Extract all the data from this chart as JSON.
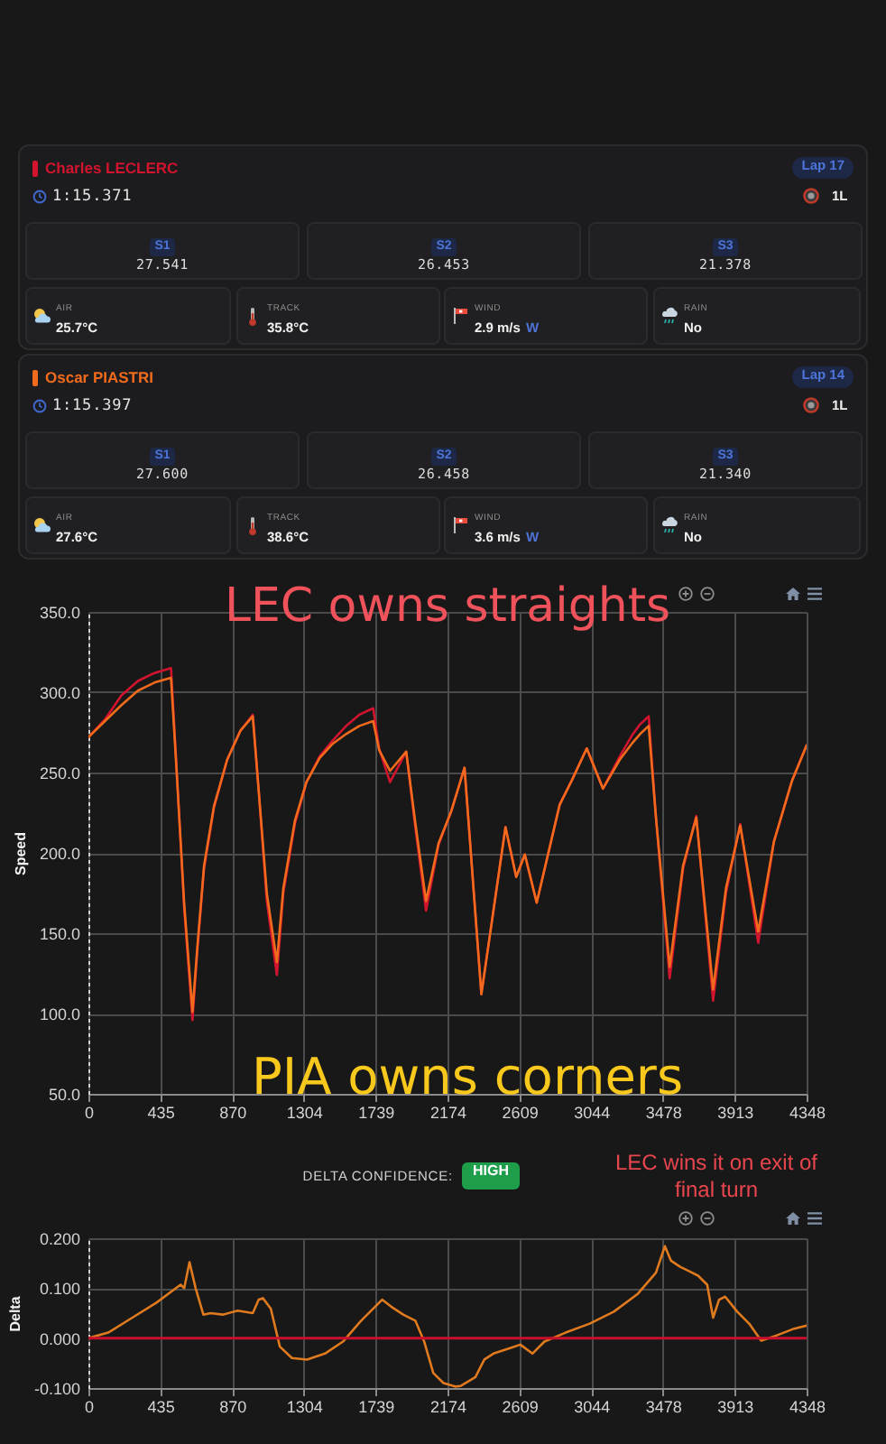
{
  "chart_data": [
    {
      "type": "other",
      "title": "Charles LECLERC",
      "annotations": [
        "1:15.371",
        "Lap 17",
        "1L",
        "S1",
        "27.541",
        "S2",
        "26.453",
        "S3",
        "21.378",
        "AIR",
        "25.7°C",
        "TRACK",
        "35.8°C",
        "WIND",
        "2.9 m/s",
        "W",
        "RAIN",
        "No"
      ]
    },
    {
      "type": "other",
      "title": "Oscar PIASTRI",
      "annotations": [
        "1:15.397",
        "Lap 14",
        "1L",
        "S1",
        "27.600",
        "S2",
        "26.458",
        "S3",
        "21.340",
        "AIR",
        "27.6°C",
        "TRACK",
        "38.6°C",
        "WIND",
        "3.6 m/s",
        "W",
        "RAIN",
        "No"
      ]
    },
    {
      "type": "line",
      "ylabel": "Speed",
      "annotations": [
        "LEC owns straights",
        "PIA owns corners"
      ],
      "x": [
        0,
        100,
        200,
        300,
        400,
        500,
        530,
        580,
        630,
        660,
        700,
        760,
        840,
        920,
        995,
        1030,
        1080,
        1141,
        1180,
        1250,
        1320,
        1400,
        1480,
        1560,
        1640,
        1724,
        1760,
        1826,
        1924,
        1980,
        2044,
        2120,
        2197,
        2277,
        2379,
        2525,
        2590,
        2642,
        2714,
        2853,
        2926,
        3017,
        3115,
        3217,
        3290,
        3340,
        3392,
        3436,
        3519,
        3600,
        3680,
        3782,
        3860,
        3946,
        4055,
        4150,
        4260,
        4348
      ],
      "series": [
        {
          "color": "#d3142e",
          "values": [
            272,
            283,
            298,
            307,
            312,
            315,
            260,
            165,
            96,
            140,
            190,
            228,
            258,
            276,
            286,
            240,
            170,
            124,
            175,
            218,
            244,
            260,
            270,
            279,
            286,
            290,
            265,
            244,
            263,
            215,
            164,
            205,
            226,
            253,
            112,
            216,
            185,
            199,
            169,
            230,
            245,
            265,
            240,
            260,
            273,
            280,
            285,
            222,
            122,
            190,
            223,
            108,
            175,
            218,
            144,
            207,
            245,
            267
          ]
        },
        {
          "color": "#f26b1d",
          "values": [
            272,
            282,
            292,
            301,
            306,
            309,
            258,
            168,
            101,
            142,
            192,
            229,
            258,
            276,
            285,
            240,
            175,
            132,
            178,
            220,
            244,
            259,
            268,
            274,
            279,
            282,
            264,
            251,
            263,
            218,
            170,
            206,
            226,
            253,
            112,
            216,
            185,
            199,
            169,
            230,
            245,
            265,
            240,
            258,
            268,
            274,
            279,
            222,
            129,
            192,
            222,
            115,
            178,
            217,
            151,
            207,
            245,
            267
          ]
        }
      ],
      "xlim": [
        0,
        4348
      ],
      "xticks": [
        0,
        435,
        870,
        1304,
        1739,
        2174,
        2609,
        3044,
        3478,
        3913,
        4348
      ],
      "ylim": [
        50,
        350
      ],
      "yticks": [
        {
          "value": 50,
          "label": "50.0"
        },
        {
          "value": 100,
          "label": "100.0"
        },
        {
          "value": 150,
          "label": "150.0"
        },
        {
          "value": 200,
          "label": "200.0"
        },
        {
          "value": 250,
          "label": "250.0"
        },
        {
          "value": 300,
          "label": "300.0"
        },
        {
          "value": 350,
          "label": "350.0"
        }
      ],
      "grid": true
    },
    {
      "type": "line",
      "ylabel": "Delta",
      "annotations": [
        "DELTA CONFIDENCE:",
        "HIGH",
        "LEC wins it on exit of final turn"
      ],
      "x": [
        0,
        120,
        266,
        412,
        521,
        558,
        580,
        612,
        649,
        696,
        740,
        813,
        904,
        995,
        1031,
        1057,
        1104,
        1159,
        1232,
        1323,
        1432,
        1541,
        1651,
        1778,
        1833,
        1906,
        1979,
        2033,
        2088,
        2150,
        2220,
        2252,
        2343,
        2397,
        2452,
        2561,
        2615,
        2688,
        2761,
        2889,
        3035,
        3181,
        3327,
        3436,
        3490,
        3527,
        3582,
        3691,
        3746,
        3782,
        3818,
        3855,
        3928,
        4000,
        4073,
        4164,
        4273,
        4348
      ],
      "series": [
        {
          "color": "#e07a1e",
          "values": [
            0,
            0.011,
            0.041,
            0.071,
            0.098,
            0.107,
            0.1,
            0.152,
            0.1,
            0.047,
            0.05,
            0.047,
            0.055,
            0.05,
            0.077,
            0.08,
            0.059,
            -0.017,
            -0.04,
            -0.043,
            -0.031,
            -0.007,
            0.035,
            0.077,
            0.063,
            0.047,
            0.035,
            -0.007,
            -0.07,
            -0.09,
            -0.097,
            -0.096,
            -0.078,
            -0.043,
            -0.031,
            -0.019,
            -0.013,
            -0.031,
            -0.007,
            0.011,
            0.029,
            0.053,
            0.089,
            0.131,
            0.184,
            0.155,
            0.143,
            0.125,
            0.107,
            0.041,
            0.077,
            0.083,
            0.053,
            0.029,
            -0.005,
            0.005,
            0.019,
            0.025
          ]
        }
      ],
      "xlim": [
        0,
        4348
      ],
      "xticks": [
        0,
        435,
        870,
        1304,
        1739,
        2174,
        2609,
        3044,
        3478,
        3913,
        4348
      ],
      "ylim": [
        -0.1,
        0.2
      ],
      "yticks": [
        {
          "value": -0.1,
          "label": "-0.100"
        },
        {
          "value": 0,
          "label": "0.000"
        },
        {
          "value": 0.1,
          "label": "0.100"
        },
        {
          "value": 0.2,
          "label": "0.200"
        }
      ],
      "grid": true,
      "ref_lines": [
        {
          "axis": "y",
          "value": 0,
          "color": "#c8102e"
        }
      ]
    }
  ]
}
